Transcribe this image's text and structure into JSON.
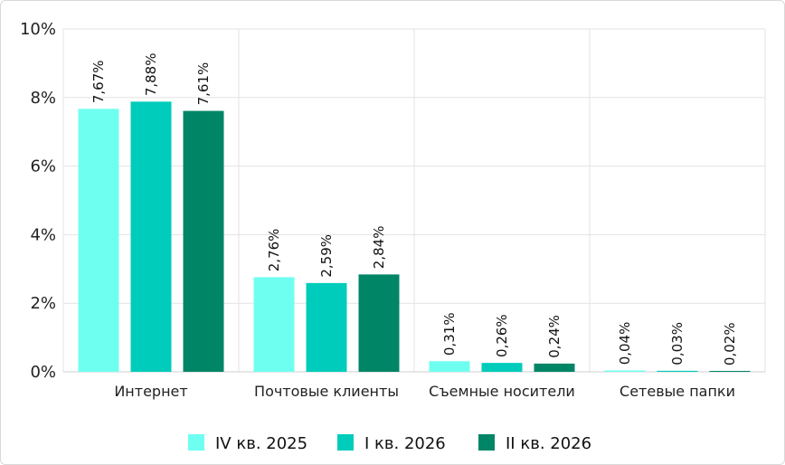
{
  "chart_data": {
    "type": "bar",
    "categories": [
      "Интернет",
      "Почтовые клиенты",
      "Съемные носители",
      "Сетевые папки"
    ],
    "series": [
      {
        "name": "IV кв. 2025",
        "color": "#6ffff0",
        "values": [
          7.67,
          2.76,
          0.31,
          0.04
        ],
        "labels": [
          "7,67%",
          "2,76%",
          "0,31%",
          "0,04%"
        ]
      },
      {
        "name": "I кв. 2026",
        "color": "#00ccbb",
        "values": [
          7.88,
          2.59,
          0.26,
          0.03
        ],
        "labels": [
          "7,88%",
          "2,59%",
          "0,26%",
          "0,03%"
        ]
      },
      {
        "name": "II кв. 2026",
        "color": "#008566",
        "values": [
          7.61,
          2.84,
          0.24,
          0.02
        ],
        "labels": [
          "7,61%",
          "2,84%",
          "0,24%",
          "0,02%"
        ]
      }
    ],
    "ylim": [
      0,
      10
    ],
    "yticks": [
      0,
      2,
      4,
      6,
      8,
      10
    ],
    "ytick_labels": [
      "0%",
      "2%",
      "4%",
      "6%",
      "8%",
      "10%"
    ],
    "grid": true,
    "legend": "bottom-center"
  }
}
